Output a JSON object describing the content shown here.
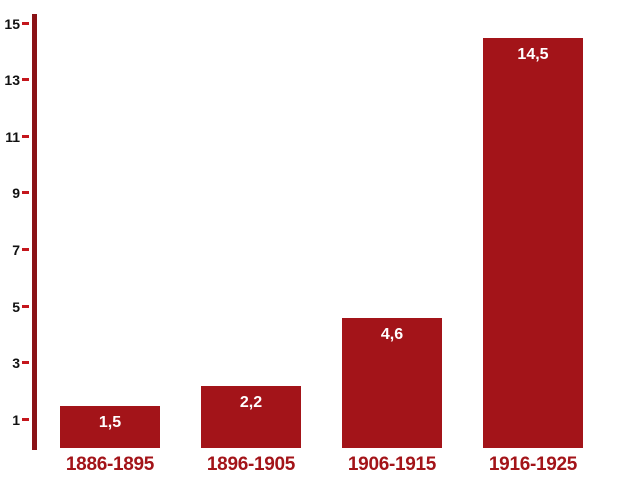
{
  "chart_data": {
    "type": "bar",
    "title": "",
    "xlabel": "",
    "ylabel": "",
    "categories": [
      "1886-1895",
      "1896-1905",
      "1906-1915",
      "1916-1925"
    ],
    "values": [
      1.5,
      2.2,
      4.6,
      14.5
    ],
    "value_labels": [
      "1,5",
      "2,2",
      "4,6",
      "14,5"
    ],
    "decimal_separator": ",",
    "ylim": [
      0,
      15
    ],
    "yticks": [
      1,
      3,
      5,
      7,
      9,
      11,
      13,
      15
    ],
    "grid": false,
    "legend": false,
    "colors": {
      "background": "#FFFFFF",
      "bar": "#A31419",
      "axis_line": "#8A1216",
      "tick_dash": "#C4161C",
      "tick_label": "#111111",
      "value_label": "#FFFFFF",
      "category_label": "#A31419"
    }
  }
}
